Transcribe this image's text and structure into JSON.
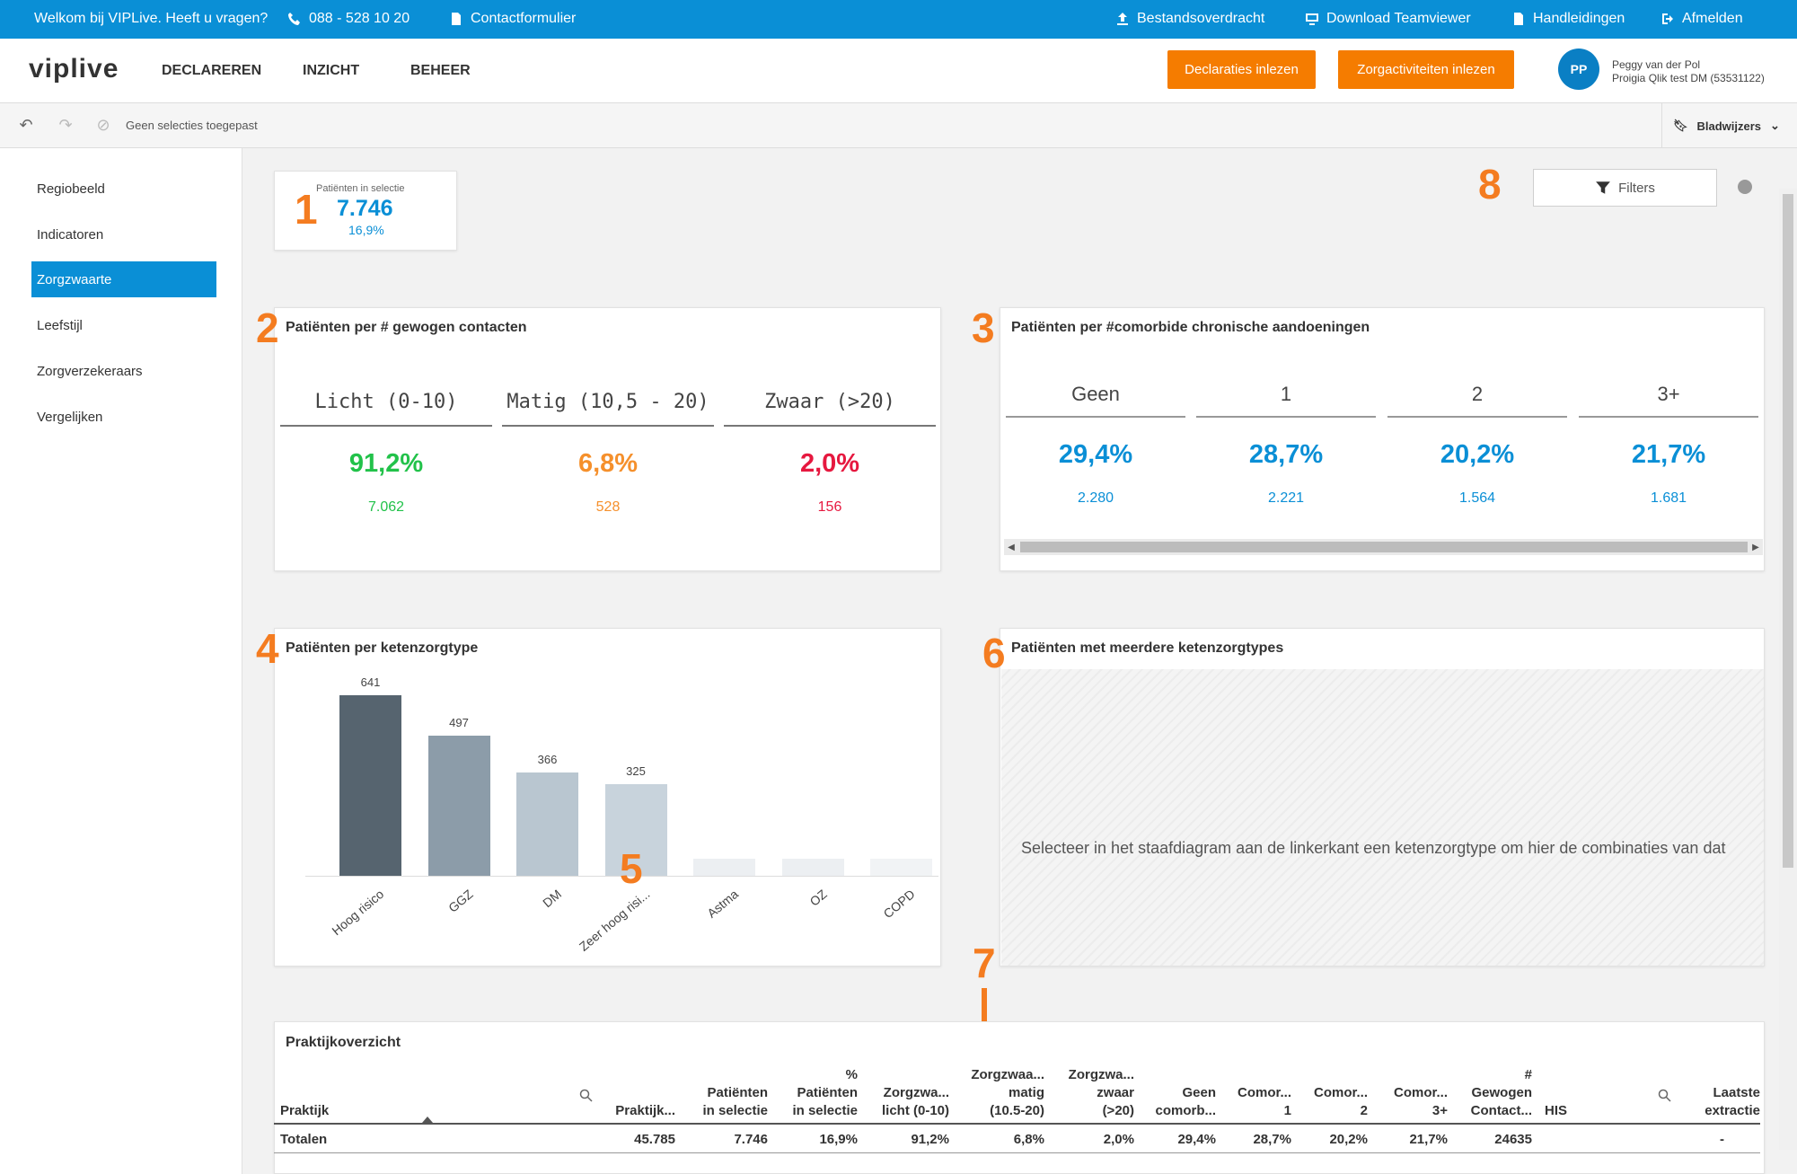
{
  "topbar": {
    "welcome": "Welkom bij VIPLive. Heeft u vragen?",
    "phone": "088 - 528 10 20",
    "contact": "Contactformulier",
    "transfer": "Bestandsoverdracht",
    "teamviewer": "Download Teamviewer",
    "manuals": "Handleidingen",
    "logout": "Afmelden"
  },
  "nav": {
    "logo": "viplive",
    "items": [
      "DECLAREREN",
      "INZICHT",
      "BEHEER"
    ],
    "btn_declaraties": "Declaraties inlezen",
    "btn_zorgactiviteiten": "Zorgactiviteiten inlezen",
    "avatar": "PP",
    "user_name": "Peggy van der Pol",
    "user_org": "Proigia Qlik test DM (53531122)"
  },
  "selection": {
    "text": "Geen selecties toegepast",
    "bookmarks": "Bladwijzers"
  },
  "sidebar": {
    "items": [
      "Regiobeeld",
      "Indicatoren",
      "Zorgzwaarte",
      "Leefstijl",
      "Zorgverzekeraars",
      "Vergelijken"
    ]
  },
  "markers": [
    "1",
    "2",
    "3",
    "4",
    "5",
    "6",
    "7",
    "8"
  ],
  "kpi": {
    "label": "Patiënten in selectie",
    "value": "7.746",
    "pct": "16,9%"
  },
  "filters_label": "Filters",
  "card_contacts": {
    "title": "Patiënten per # gewogen contacten",
    "cols": [
      {
        "head": "Licht (0-10)",
        "pct": "91,2%",
        "count": "7.062",
        "color": "#22c24a"
      },
      {
        "head": "Matig (10,5 - 20)",
        "pct": "6,8%",
        "count": "528",
        "color": "#f5902c"
      },
      {
        "head": "Zwaar (>20)",
        "pct": "2,0%",
        "count": "156",
        "color": "#e6183f"
      }
    ]
  },
  "card_comorbid": {
    "title": "Patiënten per #comorbide chronische aandoeningen",
    "cols": [
      {
        "head": "Geen",
        "pct": "29,4%",
        "count": "2.280"
      },
      {
        "head": "1",
        "pct": "28,7%",
        "count": "2.221"
      },
      {
        "head": "2",
        "pct": "20,2%",
        "count": "1.564"
      },
      {
        "head": "3+",
        "pct": "21,7%",
        "count": "1.681"
      }
    ]
  },
  "card_chain": {
    "title": "Patiënten per ketenzorgtype"
  },
  "chart_data": {
    "type": "bar",
    "title": "Patiënten per ketenzorgtype",
    "categories": [
      "Hoog risico",
      "GGZ",
      "DM",
      "Zeer hoog risi...",
      "Astma",
      "OZ",
      "COPD"
    ],
    "values": [
      641,
      497,
      366,
      325,
      60,
      60,
      60
    ],
    "value_labels": [
      "641",
      "497",
      "366",
      "325",
      "",
      "",
      ""
    ],
    "colors": [
      "#56646f",
      "#8c9ca9",
      "#b9c6d0",
      "#c8d3dc",
      "#eceff2",
      "#eceff2",
      "#f1f3f5"
    ],
    "ylim": [
      0,
      700
    ]
  },
  "card_multi": {
    "title": "Patiënten met meerdere ketenzorgtypes",
    "placeholder": "Selecteer in het staafdiagram aan de linkerkant een ketenzorgtype om hier de combinaties van dat"
  },
  "table": {
    "title": "Praktijkoverzicht",
    "headers": [
      "Praktijk",
      "Praktijk...",
      "Patiënten\nin selectie",
      "%\nPatiënten\nin selectie",
      "Zorgzwa...\nlicht (0-10)",
      "Zorgzwaa...\nmatig\n(10.5-20)",
      "Zorgzwa...\nzwaar\n(>20)",
      "Geen\ncomorb...",
      "Comor...\n1",
      "Comor...\n2",
      "Comor...\n3+",
      "#\nGewogen\nContact...",
      "HIS",
      "Laatste\nextractie"
    ],
    "totals": [
      "Totalen",
      "45.785",
      "7.746",
      "16,9%",
      "91,2%",
      "6,8%",
      "2,0%",
      "29,4%",
      "28,7%",
      "20,2%",
      "21,7%",
      "24635",
      "",
      "-"
    ]
  }
}
